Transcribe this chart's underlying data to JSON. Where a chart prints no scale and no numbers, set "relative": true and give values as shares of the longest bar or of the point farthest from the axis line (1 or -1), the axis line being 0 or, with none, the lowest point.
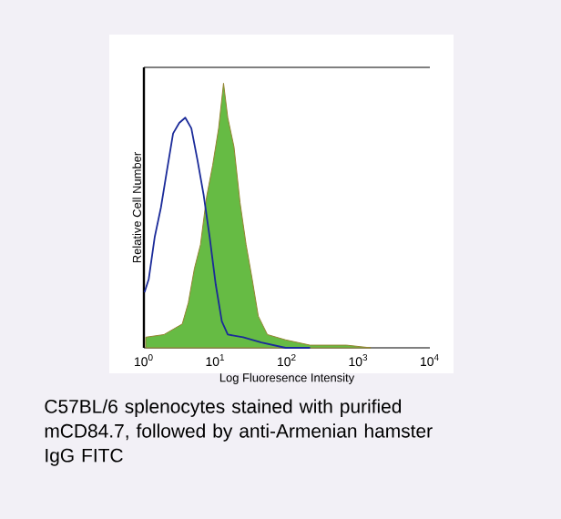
{
  "chart_data": {
    "type": "area",
    "xlabel": "Log Fluoresence Intensity",
    "ylabel": "Relative Cell Number",
    "relative": true,
    "log": "x",
    "tick_labels": "x",
    "grid": false,
    "xlim": [
      1,
      10000
    ],
    "xticks": [
      {
        "value": 1,
        "label": "10$^{0}$"
      },
      {
        "value": 10,
        "label": "10$^{1}$"
      },
      {
        "value": 100,
        "label": "10$^{2}$"
      },
      {
        "value": 1000,
        "label": "10$^{3}$"
      },
      {
        "value": 10000,
        "label": "10$^{4}$"
      }
    ],
    "series": [
      {
        "type": "area",
        "color": "#66bb44",
        "x": [
          1.06,
          1.91,
          3.44,
          4.18,
          5.09,
          6.19,
          7.53,
          9.16,
          11.1,
          13.0,
          14.9,
          18.2,
          22.1,
          26.9,
          32.7,
          39.8,
          53.4,
          96,
          211,
          683,
          1494
        ],
        "values": [
          0.04,
          0.05,
          0.09,
          0.17,
          0.3,
          0.39,
          0.57,
          0.69,
          0.83,
          1,
          0.87,
          0.76,
          0.55,
          0.39,
          0.26,
          0.12,
          0.05,
          0.03,
          0.01,
          0.01,
          0
        ]
      },
      {
        "type": "line",
        "color": "#1a2a99",
        "x": [
          1.02,
          1.17,
          1.42,
          1.73,
          2.1,
          2.56,
          3.12,
          3.79,
          4.61,
          5.61,
          6.83,
          8.3,
          10.1,
          12.3,
          14.9,
          24.4,
          44.0,
          96,
          211
        ],
        "values": [
          0.21,
          0.26,
          0.42,
          0.53,
          0.67,
          0.81,
          0.85,
          0.87,
          0.83,
          0.71,
          0.58,
          0.42,
          0.24,
          0.1,
          0.05,
          0.04,
          0.02,
          0,
          0
        ]
      }
    ],
    "annotations": [
      "C57BL/6 splenocytes stained with purified mCD84.7, followed by anti-Armenian hamster IgG FITC"
    ]
  }
}
